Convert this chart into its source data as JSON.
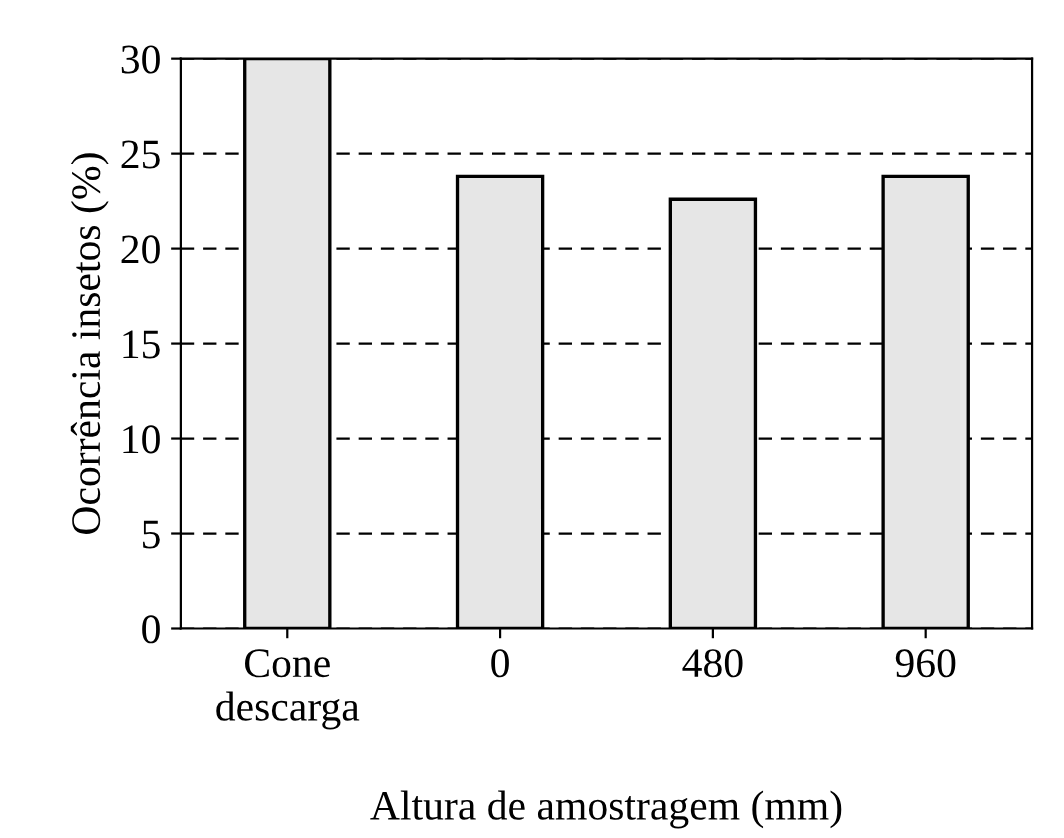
{
  "chart_data": {
    "type": "bar",
    "xlabel": "Altura de amostragem (mm)",
    "ylabel": "Ocorrência insetos (%)",
    "categories": [
      "Cone\ndescarga",
      "0",
      "480",
      "960"
    ],
    "values": [
      30,
      23.8,
      22.6,
      23.8
    ],
    "color": "#e6e6e6",
    "ylim": [
      0,
      30
    ],
    "yticks": [
      0,
      5,
      10,
      15,
      20,
      25,
      30
    ],
    "grid": "y"
  }
}
